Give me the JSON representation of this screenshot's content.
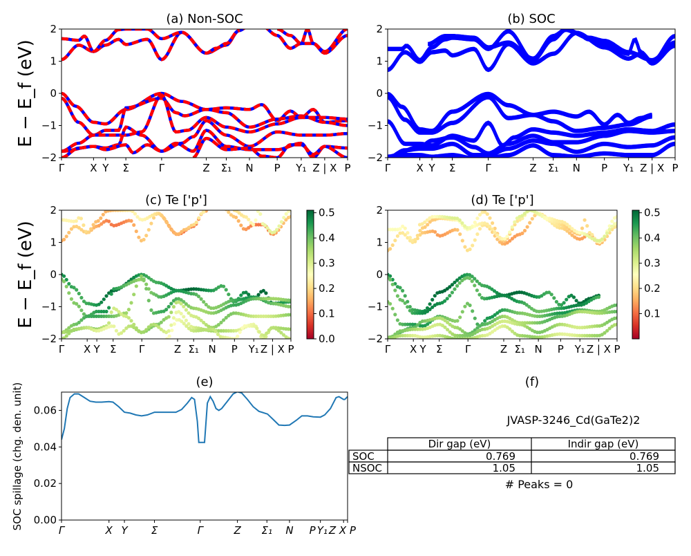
{
  "colors": {
    "nonsoc_red": "#ff0000",
    "nonsoc_blue": "#0000ff",
    "soc_blue": "#0000ff",
    "spillage_line": "#1f77b4"
  },
  "ylabel_band": "E − E_f (eV)",
  "kpath_labels": [
    "Γ",
    "X",
    "Y",
    "Σ",
    "Γ",
    "Z",
    "Σ₁",
    "N",
    "P",
    "Y₁",
    "Z | X",
    "P"
  ],
  "chart_data": [
    {
      "id": "a",
      "type": "line",
      "title": "(a) Non-SOC",
      "ylabel": "E − E_f (eV)",
      "ylim": [
        -2,
        2
      ],
      "yticks": [
        -2,
        -1,
        0,
        1,
        2
      ],
      "xticks": [
        0,
        0.112,
        0.154,
        0.225,
        0.35,
        0.506,
        0.576,
        0.657,
        0.754,
        0.838,
        0.92,
        1.0
      ],
      "xticklabels": [
        "Γ",
        "X",
        "Y",
        "Σ",
        "Γ",
        "Z",
        "Σ₁",
        "N",
        "P",
        "Y₁",
        "Z | X",
        "P"
      ],
      "style": "red-blue-dashed",
      "series": [
        {
          "name": "cb1",
          "x": [
            0,
            0.06,
            0.112,
            0.154,
            0.2,
            0.225,
            0.3,
            0.35,
            0.42,
            0.506,
            0.576,
            0.62,
            0.657,
            0.7,
            0.754,
            0.8,
            0.838,
            0.88,
            0.92,
            1.0
          ],
          "y": [
            1.05,
            1.5,
            1.3,
            1.5,
            1.68,
            1.52,
            1.68,
            1.05,
            1.9,
            1.25,
            1.5,
            1.95,
            2.1,
            2.1,
            1.8,
            1.4,
            1.55,
            1.55,
            1.25,
            1.8
          ]
        },
        {
          "name": "cb2",
          "x": [
            0,
            0.06,
            0.08,
            0.112,
            0.154,
            0.2,
            0.225,
            0.3,
            0.35,
            0.42,
            0.506,
            0.54,
            0.576,
            0.62
          ],
          "y": [
            1.7,
            1.65,
            1.78,
            1.3,
            1.65,
            1.98,
            2.0,
            2.0,
            1.7,
            1.9,
            1.25,
            1.4,
            1.55,
            1.95
          ]
        },
        {
          "name": "cb3",
          "x": [
            0.754,
            0.8,
            0.838,
            0.86,
            0.88,
            0.92,
            1.0
          ],
          "y": [
            2.0,
            1.8,
            1.55,
            2.0,
            1.55,
            1.3,
            2.0
          ]
        },
        {
          "name": "vb1",
          "x": [
            0,
            0.05,
            0.112,
            0.154,
            0.225,
            0.35,
            0.42,
            0.506,
            0.576,
            0.657,
            0.7,
            0.754,
            0.8,
            0.838,
            0.88,
            0.92,
            1.0
          ],
          "y": [
            0.0,
            -0.4,
            -0.9,
            -0.95,
            -0.5,
            0.0,
            -0.25,
            -0.5,
            -0.45,
            -0.5,
            -0.35,
            -0.85,
            -0.55,
            -0.75,
            -0.5,
            -0.9,
            -0.85
          ]
        },
        {
          "name": "vb2",
          "x": [
            0,
            0.06,
            0.112,
            0.154,
            0.2,
            0.225,
            0.35,
            0.4,
            0.43,
            0.506,
            0.576,
            0.657,
            0.754,
            0.838,
            0.92,
            1.0
          ],
          "y": [
            -0.15,
            -0.9,
            -1.3,
            -1.15,
            -1.15,
            -0.45,
            -0.15,
            -0.6,
            -0.7,
            -0.5,
            -0.6,
            -1.05,
            -0.8,
            -0.7,
            -0.9,
            -1.0
          ]
        },
        {
          "name": "vb3",
          "x": [
            0,
            0.06,
            0.112,
            0.154,
            0.225,
            0.28,
            0.35,
            0.4,
            0.44,
            0.506,
            0.576,
            0.657,
            0.754,
            0.838,
            0.92,
            1.0
          ],
          "y": [
            -1.8,
            -1.55,
            -1.3,
            -1.3,
            -1.3,
            -1.2,
            -0.05,
            -1.2,
            -1.15,
            -0.75,
            -1.05,
            -1.2,
            -0.95,
            -0.75,
            -0.75,
            -0.8
          ]
        },
        {
          "name": "vb4",
          "x": [
            0,
            0.112,
            0.154,
            0.2,
            0.225,
            0.28,
            0.35,
            0.42,
            0.46,
            0.506,
            0.576,
            0.657,
            0.754,
            0.838,
            0.92,
            1.0
          ],
          "y": [
            -1.8,
            -1.65,
            -1.7,
            -1.6,
            -1.05,
            -1.3,
            -1.8,
            -1.55,
            -1.35,
            -0.85,
            -1.3,
            -1.65,
            -1.2,
            -1.3,
            -1.3,
            -1.25
          ]
        },
        {
          "name": "vb5",
          "x": [
            0,
            0.06,
            0.112,
            0.154,
            0.225,
            0.25,
            0.3,
            0.35,
            0.4,
            0.46,
            0.506,
            0.576,
            0.657,
            0.754,
            0.838,
            0.88,
            0.92,
            1.0
          ],
          "y": [
            -2.0,
            -1.7,
            -1.65,
            -1.75,
            -1.6,
            -1.85,
            -1.6,
            -1.8,
            -1.55,
            -1.8,
            -1.15,
            -1.65,
            -1.75,
            -1.75,
            -1.55,
            -2.0,
            -1.65,
            -1.7
          ]
        },
        {
          "name": "vb6",
          "x": [
            0.46,
            0.506,
            0.576,
            0.657,
            0.7,
            0.754,
            0.8,
            0.838,
            0.88,
            0.92,
            1.0
          ],
          "y": [
            -2.0,
            -1.4,
            -1.75,
            -1.7,
            -1.95,
            -2.0,
            -1.6,
            -1.6,
            -1.9,
            -1.65,
            -2.0
          ]
        }
      ]
    },
    {
      "id": "b",
      "type": "line",
      "title": "(b) SOC",
      "ylabel": "",
      "ylim": [
        -2,
        2
      ],
      "yticks": [
        -2,
        -1,
        0,
        1,
        2
      ],
      "xticks": [
        0,
        0.112,
        0.154,
        0.225,
        0.35,
        0.506,
        0.576,
        0.657,
        0.754,
        0.838,
        0.92,
        1.0
      ],
      "xticklabels": [
        "Γ",
        "X",
        "Y",
        "Σ",
        "Γ",
        "Z",
        "Σ₁",
        "N",
        "P",
        "Y₁",
        "Z | X",
        "P"
      ],
      "style": "blue",
      "series": [
        {
          "name": "cb1",
          "x": [
            0,
            0.06,
            0.112,
            0.154,
            0.2,
            0.225,
            0.3,
            0.35,
            0.42,
            0.506,
            0.576,
            0.657,
            0.754,
            0.838,
            0.88,
            0.92,
            1.0
          ],
          "y": [
            0.75,
            1.3,
            1.0,
            1.3,
            1.35,
            1.2,
            1.4,
            0.75,
            1.55,
            0.95,
            1.25,
            1.9,
            1.45,
            1.1,
            1.25,
            0.95,
            1.5
          ]
        },
        {
          "name": "cb2",
          "x": [
            0,
            0.05,
            0.065,
            0.112,
            0.154,
            0.2,
            0.225,
            0.3,
            0.35,
            0.42,
            0.506,
            0.576,
            0.62,
            0.657,
            0.7,
            0.754,
            0.838,
            0.86,
            0.88,
            0.92,
            1.0
          ],
          "y": [
            1.4,
            1.4,
            1.5,
            1.05,
            1.45,
            1.7,
            1.75,
            1.7,
            1.4,
            1.95,
            1.05,
            1.7,
            2.0,
            1.9,
            1.7,
            1.55,
            1.25,
            1.7,
            1.3,
            1.0,
            1.8
          ]
        },
        {
          "name": "cb3",
          "x": [
            0.14,
            0.2,
            0.225,
            0.3,
            0.35,
            0.42,
            0.506,
            0.576,
            0.62,
            0.7,
            0.754,
            0.838,
            0.92,
            1.0
          ],
          "y": [
            1.55,
            1.8,
            1.8,
            1.75,
            1.45,
            1.6,
            1.1,
            1.8,
            2.0,
            1.75,
            1.65,
            1.3,
            1.05,
            1.6
          ]
        },
        {
          "name": "vb1",
          "x": [
            0,
            0.05,
            0.112,
            0.154,
            0.225,
            0.35,
            0.42,
            0.506,
            0.576,
            0.657,
            0.7,
            0.754,
            0.8,
            0.838,
            0.88,
            0.92
          ],
          "y": [
            0.0,
            -0.4,
            -1.1,
            -1.15,
            -0.55,
            0.0,
            -0.35,
            -0.65,
            -0.55,
            -0.7,
            -0.55,
            -0.95,
            -0.65,
            -0.9,
            -0.75,
            -0.65
          ]
        },
        {
          "name": "vb2",
          "x": [
            0,
            0.06,
            0.112,
            0.154,
            0.225,
            0.35,
            0.42,
            0.506,
            0.576,
            0.657,
            0.754,
            0.838,
            0.92
          ],
          "y": [
            -0.1,
            -0.8,
            -1.2,
            -1.2,
            -0.9,
            -0.1,
            -0.75,
            -0.65,
            -0.85,
            -1.15,
            -1.05,
            -0.95,
            -0.7
          ]
        },
        {
          "name": "vb3",
          "x": [
            0,
            0.06,
            0.112,
            0.154,
            0.225,
            0.3,
            0.35,
            0.4,
            0.44,
            0.506,
            0.576,
            0.657,
            0.754,
            0.838,
            0.92,
            1.0
          ],
          "y": [
            -0.85,
            -1.55,
            -1.55,
            -1.6,
            -1.3,
            -1.45,
            -0.9,
            -1.6,
            -1.35,
            -1.1,
            -1.2,
            -1.3,
            -1.2,
            -1.1,
            -1.15,
            -0.95
          ]
        },
        {
          "name": "vb4",
          "x": [
            0,
            0.112,
            0.154,
            0.225,
            0.3,
            0.35,
            0.42,
            0.506,
            0.576,
            0.657,
            0.754,
            0.838,
            0.92,
            1.0
          ],
          "y": [
            -1.95,
            -1.65,
            -1.45,
            -1.35,
            -1.65,
            -1.85,
            -1.55,
            -1.3,
            -1.5,
            -1.5,
            -1.3,
            -1.15,
            -1.2,
            -1.15
          ]
        },
        {
          "name": "vb5",
          "x": [
            0,
            0.06,
            0.112,
            0.154,
            0.225,
            0.3,
            0.35,
            0.42,
            0.506,
            0.576,
            0.657,
            0.754,
            0.838,
            0.92,
            1.0
          ],
          "y": [
            -2.0,
            -1.75,
            -1.7,
            -1.7,
            -1.55,
            -1.9,
            -1.9,
            -1.7,
            -1.45,
            -1.55,
            -1.8,
            -1.55,
            -1.65,
            -1.6,
            -1.35
          ]
        },
        {
          "name": "vb6",
          "x": [
            0,
            0.06,
            0.112,
            0.154,
            0.225,
            0.3,
            0.35,
            0.42,
            0.506,
            0.576,
            0.657,
            0.754,
            0.838,
            0.92,
            1.0
          ],
          "y": [
            -2.0,
            -1.9,
            -1.9,
            -1.95,
            -1.9,
            -2.0,
            -2.0,
            -1.9,
            -1.6,
            -1.9,
            -1.95,
            -1.85,
            -1.9,
            -1.9,
            -1.55
          ]
        }
      ]
    },
    {
      "id": "c",
      "type": "scatter",
      "title": "(c)  Te ['p']",
      "ylabel": "E − E_f (eV)",
      "ylim": [
        -2,
        2
      ],
      "yticks": [
        -2,
        -1,
        0,
        1,
        2
      ],
      "xticks": [
        0,
        0.112,
        0.154,
        0.225,
        0.35,
        0.506,
        0.576,
        0.657,
        0.754,
        0.838,
        0.92,
        1.0
      ],
      "xticklabels": [
        "Γ",
        "X",
        "Y",
        "Σ",
        "Γ",
        "Z",
        "Σ₁",
        "N",
        "P",
        "Y₁",
        "Z | X",
        "P"
      ],
      "colorbar": {
        "cmap": "RdYlGn",
        "range": [
          0.0,
          0.51
        ],
        "ticks": [
          "0.0",
          "0.1",
          "0.2",
          "0.3",
          "0.4",
          "0.5"
        ]
      },
      "band_weights": [
        0.15,
        0.2,
        0.25,
        0.47,
        0.42,
        0.4,
        0.35,
        0.32,
        0.3
      ]
    },
    {
      "id": "d",
      "type": "scatter",
      "title": "(d) Te ['p']",
      "ylabel": "",
      "ylim": [
        -2,
        2
      ],
      "yticks": [
        -2,
        -1,
        0,
        1,
        2
      ],
      "xticks": [
        0,
        0.112,
        0.154,
        0.225,
        0.35,
        0.506,
        0.576,
        0.657,
        0.754,
        0.838,
        0.92,
        1.0
      ],
      "xticklabels": [
        "Γ",
        "X",
        "Y",
        "Σ",
        "Γ",
        "Z",
        "Σ₁",
        "N",
        "P",
        "Y₁",
        "Z | X",
        "P"
      ],
      "colorbar": {
        "cmap": "RdYlGn",
        "range": [
          0.0,
          0.51
        ],
        "ticks": [
          "0.1",
          "0.2",
          "0.3",
          "0.4",
          "0.5"
        ]
      },
      "band_weights": [
        0.18,
        0.22,
        0.26,
        0.47,
        0.44,
        0.42,
        0.38,
        0.35,
        0.33
      ]
    },
    {
      "id": "e",
      "type": "line",
      "title": "(e)",
      "ylabel": "SOC spillage (chg. den. unit)",
      "ylim": [
        0,
        0.07
      ],
      "yticks": [
        "0.00",
        "0.02",
        "0.04",
        "0.06"
      ],
      "xticks": [
        0,
        0.166,
        0.22,
        0.325,
        0.485,
        0.615,
        0.718,
        0.797,
        0.905,
        0.986,
        1.0
      ],
      "xticklabels": [
        "Γ",
        "X",
        "Y",
        "Σ",
        "Γ",
        "Z",
        "Σ₁",
        "N",
        "P",
        "Y₁",
        "Z X P"
      ],
      "xticklabels_full": [
        "Γ",
        "X",
        "Y",
        "Σ",
        "Γ",
        "Z",
        "Σ₁",
        "N",
        "P",
        "Y₁",
        "Z",
        "X",
        "P"
      ],
      "series": [
        {
          "name": "spillage",
          "x": [
            0,
            0.01,
            0.02,
            0.03,
            0.045,
            0.06,
            0.08,
            0.1,
            0.12,
            0.14,
            0.166,
            0.18,
            0.2,
            0.22,
            0.24,
            0.26,
            0.28,
            0.3,
            0.325,
            0.35,
            0.38,
            0.4,
            0.42,
            0.44,
            0.455,
            0.465,
            0.475,
            0.48,
            0.49,
            0.5,
            0.51,
            0.52,
            0.53,
            0.54,
            0.55,
            0.56,
            0.58,
            0.6,
            0.615,
            0.63,
            0.65,
            0.67,
            0.69,
            0.72,
            0.74,
            0.76,
            0.78,
            0.797,
            0.82,
            0.84,
            0.86,
            0.88,
            0.905,
            0.92,
            0.94,
            0.96,
            0.97,
            0.986,
            0.99,
            1.0
          ],
          "y": [
            0.044,
            0.05,
            0.061,
            0.067,
            0.069,
            0.069,
            0.067,
            0.065,
            0.0645,
            0.0645,
            0.0648,
            0.0645,
            0.062,
            0.059,
            0.0585,
            0.0575,
            0.057,
            0.0575,
            0.059,
            0.059,
            0.059,
            0.059,
            0.0605,
            0.064,
            0.067,
            0.066,
            0.054,
            0.0425,
            0.0425,
            0.0425,
            0.064,
            0.0675,
            0.065,
            0.061,
            0.06,
            0.061,
            0.065,
            0.069,
            0.0702,
            0.0695,
            0.066,
            0.062,
            0.0595,
            0.058,
            0.055,
            0.052,
            0.0518,
            0.052,
            0.0545,
            0.057,
            0.057,
            0.0565,
            0.0563,
            0.0575,
            0.061,
            0.067,
            0.0675,
            0.066,
            0.066,
            0.0675
          ]
        }
      ]
    }
  ],
  "panel_f": {
    "title": "(f)",
    "material": "JVASP-3246_Cd(GaTe2)2",
    "table": {
      "columns": [
        "Dir gap (eV)",
        "Indir gap (eV)"
      ],
      "rows": [
        {
          "label": "SOC",
          "values": [
            "0.769",
            "0.769"
          ]
        },
        {
          "label": "NSOC",
          "values": [
            "1.05",
            "1.05"
          ]
        }
      ]
    },
    "peaks_text": "# Peaks = 0"
  }
}
